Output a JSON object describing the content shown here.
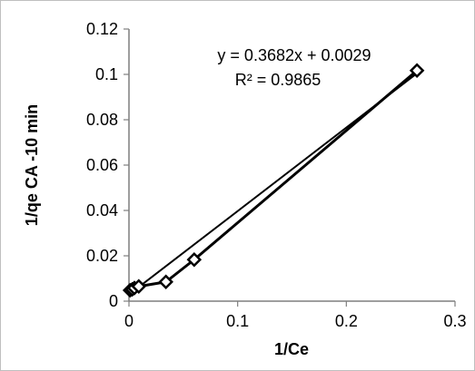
{
  "chart_data": {
    "type": "scatter",
    "xlabel": "1/Ce",
    "ylabel": "1/qe  CA -10 min",
    "xlim": [
      0,
      0.3
    ],
    "ylim": [
      0,
      0.12
    ],
    "x_ticks": [
      "0",
      "0.1",
      "0.2",
      "0.3"
    ],
    "y_ticks": [
      "0",
      "0.02",
      "0.04",
      "0.06",
      "0.08",
      "0.1",
      "0.12"
    ],
    "x_tick_values": [
      0,
      0.1,
      0.2,
      0.3
    ],
    "y_tick_values": [
      0,
      0.02,
      0.04,
      0.06,
      0.08,
      0.1,
      0.12
    ],
    "grid": false,
    "series": [
      {
        "marker": "diamond",
        "connected": true,
        "x": [
          0.001,
          0.003,
          0.005,
          0.009,
          0.034,
          0.06,
          0.265
        ],
        "y": [
          0.0048,
          0.0052,
          0.0058,
          0.0065,
          0.0085,
          0.0183,
          0.1017
        ]
      }
    ],
    "trendline": {
      "slope": 0.3682,
      "intercept": 0.0029,
      "equation": "y = 0.3682x + 0.0029",
      "r_squared": "R² = 0.9865"
    },
    "colors": {
      "series": "#000000",
      "axis": "#7f7f7f",
      "frame": "#bfbfbf"
    }
  }
}
